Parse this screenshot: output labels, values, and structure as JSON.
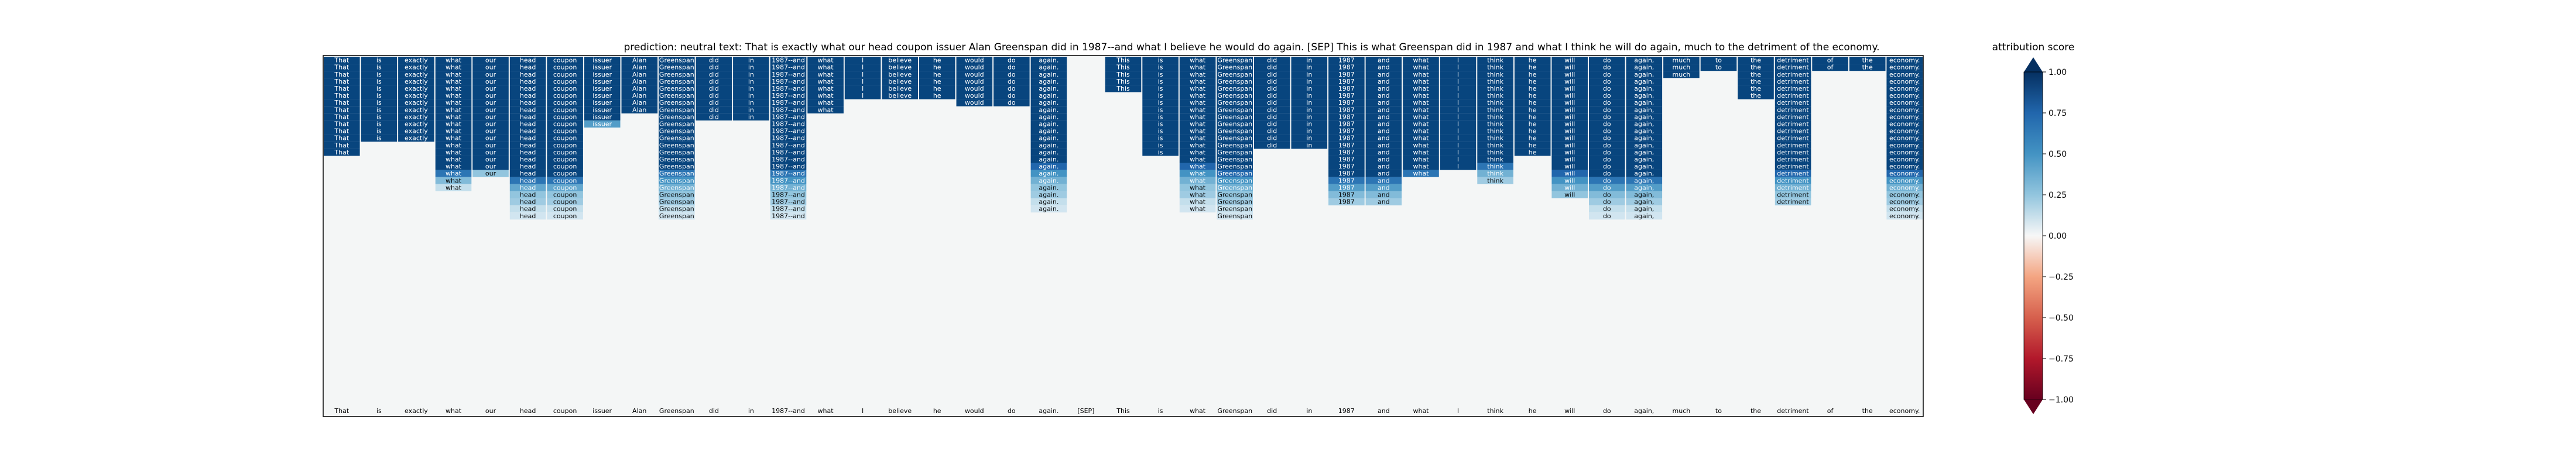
{
  "chart_data": [
    {
      "type": "heatmap",
      "title": "prediction:  neutral     text:  That is exactly what our head coupon issuer Alan Greenspan did in 1987--and what I believe he would do again. [SEP] This is what Greenspan did in 1987 and what I think he will do again, much to the detriment of the economy.",
      "tokens": [
        "That",
        "is",
        "exactly",
        "what",
        "our",
        "head",
        "coupon",
        "issuer",
        "Alan",
        "Greenspan",
        "did",
        "in",
        "1987--and",
        "what",
        "I",
        "believe",
        "he",
        "would",
        "do",
        "again.",
        "[SEP]",
        "This",
        "is",
        "what",
        "Greenspan",
        "did",
        "in",
        "1987",
        "and",
        "what",
        "I",
        "think",
        "he",
        "will",
        "do",
        "again,",
        "much",
        "to",
        "the",
        "detriment",
        "of",
        "the",
        "economy."
      ],
      "rows_shown": 23,
      "column_rows": [
        [
          1,
          1,
          1,
          1,
          1,
          1,
          1,
          1,
          1,
          1,
          1,
          1,
          1,
          1,
          0,
          0,
          0,
          0,
          0,
          0,
          0,
          0,
          0
        ],
        [
          1,
          1,
          1,
          1,
          1,
          1,
          1,
          1,
          1,
          1,
          1,
          1,
          0,
          0,
          0,
          0,
          0,
          0,
          0,
          0,
          0,
          0,
          0
        ],
        [
          1,
          1,
          1,
          1,
          1,
          1,
          1,
          1,
          1,
          1,
          1,
          1,
          0,
          0,
          0,
          0,
          0,
          0,
          0,
          0,
          0,
          0,
          0
        ],
        [
          1,
          1,
          1,
          1,
          1,
          1,
          1,
          1,
          1,
          1,
          1,
          1,
          1,
          1,
          1,
          1,
          0.85,
          0.55,
          0.3,
          0,
          0,
          0,
          0
        ],
        [
          1,
          1,
          1,
          1,
          1,
          1,
          1,
          1,
          1,
          1,
          1,
          1,
          1,
          1,
          1,
          1,
          0.5,
          0,
          0,
          0,
          0,
          0,
          0
        ],
        [
          1,
          1,
          1,
          1,
          1,
          1,
          1,
          1,
          1,
          1,
          1,
          1,
          1,
          1,
          1,
          1,
          1,
          0.85,
          0.65,
          0.5,
          0.45,
          0.3,
          0.25
        ],
        [
          1,
          1,
          1,
          1,
          1,
          1,
          1,
          1,
          1,
          1,
          1,
          1,
          1,
          1,
          1,
          1,
          1,
          0.85,
          0.65,
          0.5,
          0.45,
          0.3,
          0.25
        ],
        [
          1,
          1,
          1,
          1,
          1,
          1,
          1,
          1,
          1,
          0.7,
          0,
          0,
          0,
          0,
          0,
          0,
          0,
          0,
          0,
          0,
          0,
          0,
          0
        ],
        [
          1,
          1,
          1,
          1,
          1,
          1,
          1,
          1,
          0,
          0,
          0,
          0,
          0,
          0,
          0,
          0,
          0,
          0,
          0,
          0,
          0,
          0,
          0
        ],
        [
          1,
          1,
          1,
          1,
          1,
          1,
          1,
          1,
          1,
          1,
          1,
          1,
          1,
          1,
          1,
          1,
          0.85,
          0.75,
          0.6,
          0.5,
          0.45,
          0.3,
          0.25
        ],
        [
          1,
          1,
          1,
          1,
          1,
          1,
          1,
          1,
          1,
          0,
          0,
          0,
          0,
          0,
          0,
          0,
          0,
          0,
          0,
          0,
          0,
          0,
          0
        ],
        [
          1,
          1,
          1,
          1,
          1,
          1,
          1,
          1,
          1,
          0,
          0,
          0,
          0,
          0,
          0,
          0,
          0,
          0,
          0,
          0,
          0,
          0,
          0
        ],
        [
          1,
          1,
          1,
          1,
          1,
          1,
          1,
          1,
          1,
          1,
          1,
          1,
          1,
          1,
          1,
          1,
          0.85,
          0.75,
          0.6,
          0.5,
          0.45,
          0.3,
          0.25
        ],
        [
          1,
          1,
          1,
          1,
          1,
          1,
          1,
          1,
          0,
          0,
          0,
          0,
          0,
          0,
          0,
          0,
          0,
          0,
          0,
          0,
          0,
          0,
          0
        ],
        [
          1,
          1,
          1,
          1,
          1,
          1,
          0,
          0,
          0,
          0,
          0,
          0,
          0,
          0,
          0,
          0,
          0,
          0,
          0,
          0,
          0,
          0,
          0
        ],
        [
          1,
          1,
          1,
          1,
          1,
          1,
          0,
          0,
          0,
          0,
          0,
          0,
          0,
          0,
          0,
          0,
          0,
          0,
          0,
          0,
          0,
          0,
          0
        ],
        [
          1,
          1,
          1,
          1,
          1,
          1,
          0,
          0,
          0,
          0,
          0,
          0,
          0,
          0,
          0,
          0,
          0,
          0,
          0,
          0,
          0,
          0,
          0
        ],
        [
          1,
          1,
          1,
          1,
          1,
          1,
          1,
          0,
          0,
          0,
          0,
          0,
          0,
          0,
          0,
          0,
          0,
          0,
          0,
          0,
          0,
          0,
          0
        ],
        [
          1,
          1,
          1,
          1,
          1,
          1,
          1,
          0,
          0,
          0,
          0,
          0,
          0,
          0,
          0,
          0,
          0,
          0,
          0,
          0,
          0,
          0,
          0
        ],
        [
          1,
          1,
          1,
          1,
          1,
          1,
          1,
          1,
          1,
          1,
          1,
          1,
          1,
          1,
          1,
          0.9,
          0.75,
          0.6,
          0.5,
          0.45,
          0.3,
          0.25,
          0
        ],
        [
          0,
          0,
          0,
          0,
          0,
          0,
          0,
          0,
          0,
          0,
          0,
          0,
          0,
          0,
          0,
          0,
          0,
          0,
          0,
          0,
          0,
          0,
          0
        ],
        [
          1,
          1,
          1,
          1,
          1,
          0,
          0,
          0,
          0,
          0,
          0,
          0,
          0,
          0,
          0,
          0,
          0,
          0,
          0,
          0,
          0,
          0,
          0
        ],
        [
          1,
          1,
          1,
          1,
          1,
          1,
          1,
          1,
          1,
          1,
          1,
          1,
          1,
          1,
          0,
          0,
          0,
          0,
          0,
          0,
          0,
          0,
          0
        ],
        [
          1,
          1,
          1,
          1,
          1,
          1,
          1,
          1,
          1,
          1,
          1,
          1,
          1,
          1,
          1,
          0.9,
          0.75,
          0.6,
          0.5,
          0.45,
          0.3,
          0.25,
          0
        ],
        [
          1,
          1,
          1,
          1,
          1,
          1,
          1,
          1,
          1,
          1,
          1,
          1,
          1,
          1,
          1,
          1,
          0.9,
          0.75,
          0.6,
          0.5,
          0.45,
          0.3,
          0.25
        ],
        [
          1,
          1,
          1,
          1,
          1,
          1,
          1,
          1,
          1,
          1,
          1,
          1,
          1,
          0,
          0,
          0,
          0,
          0,
          0,
          0,
          0,
          0,
          0
        ],
        [
          1,
          1,
          1,
          1,
          1,
          1,
          1,
          1,
          1,
          1,
          1,
          1,
          1,
          0,
          0,
          0,
          0,
          0,
          0,
          0,
          0,
          0,
          0
        ],
        [
          1,
          1,
          1,
          1,
          1,
          1,
          1,
          1,
          1,
          1,
          1,
          1,
          1,
          1,
          1,
          1,
          1,
          0.85,
          0.7,
          0.55,
          0.45,
          0,
          0
        ],
        [
          1,
          1,
          1,
          1,
          1,
          1,
          1,
          1,
          1,
          1,
          1,
          1,
          1,
          1,
          1,
          1,
          1,
          0.85,
          0.7,
          0.55,
          0.45,
          0,
          0
        ],
        [
          1,
          1,
          1,
          1,
          1,
          1,
          1,
          1,
          1,
          1,
          1,
          1,
          1,
          1,
          1,
          1,
          0.85,
          0,
          0,
          0,
          0,
          0,
          0
        ],
        [
          1,
          1,
          1,
          1,
          1,
          1,
          1,
          1,
          1,
          1,
          1,
          1,
          1,
          1,
          1,
          1,
          0,
          0,
          0,
          0,
          0,
          0,
          0
        ],
        [
          1,
          1,
          1,
          1,
          1,
          1,
          1,
          1,
          1,
          1,
          1,
          1,
          1,
          1,
          1,
          0.85,
          0.6,
          0.45,
          0,
          0,
          0,
          0,
          0
        ],
        [
          1,
          1,
          1,
          1,
          1,
          1,
          1,
          1,
          1,
          1,
          1,
          1,
          1,
          1,
          0,
          0,
          0,
          0,
          0,
          0,
          0,
          0,
          0
        ],
        [
          1,
          1,
          1,
          1,
          1,
          1,
          1,
          1,
          1,
          1,
          1,
          1,
          1,
          1,
          1,
          1,
          0.9,
          0.75,
          0.6,
          0.5,
          0,
          0,
          0
        ],
        [
          1,
          1,
          1,
          1,
          1,
          1,
          1,
          1,
          1,
          1,
          1,
          1,
          1,
          1,
          1,
          1,
          1,
          0.85,
          0.7,
          0.55,
          0.45,
          0.3,
          0.25
        ],
        [
          1,
          1,
          1,
          1,
          1,
          1,
          1,
          1,
          1,
          1,
          1,
          1,
          1,
          1,
          1,
          1,
          1,
          0.85,
          0.7,
          0.55,
          0.45,
          0.3,
          0.25
        ],
        [
          1,
          1,
          1,
          0,
          0,
          0,
          0,
          0,
          0,
          0,
          0,
          0,
          0,
          0,
          0,
          0,
          0,
          0,
          0,
          0,
          0,
          0,
          0
        ],
        [
          1,
          1,
          0,
          0,
          0,
          0,
          0,
          0,
          0,
          0,
          0,
          0,
          0,
          0,
          0,
          0,
          0,
          0,
          0,
          0,
          0,
          0,
          0
        ],
        [
          1,
          1,
          1,
          1,
          1,
          1,
          0,
          0,
          0,
          0,
          0,
          0,
          0,
          0,
          0,
          0,
          0,
          0,
          0,
          0,
          0,
          0,
          0
        ],
        [
          1,
          1,
          1,
          1,
          1,
          1,
          1,
          1,
          1,
          1,
          1,
          1,
          1,
          1,
          1,
          1,
          0.9,
          0.75,
          0.6,
          0.5,
          0.45,
          0,
          0
        ],
        [
          1,
          1,
          0,
          0,
          0,
          0,
          0,
          0,
          0,
          0,
          0,
          0,
          0,
          0,
          0,
          0,
          0,
          0,
          0,
          0,
          0,
          0,
          0
        ],
        [
          1,
          1,
          0,
          0,
          0,
          0,
          0,
          0,
          0,
          0,
          0,
          0,
          0,
          0,
          0,
          0,
          0,
          0,
          0,
          0,
          0,
          0,
          0
        ],
        [
          1,
          1,
          1,
          1,
          1,
          1,
          1,
          1,
          1,
          1,
          1,
          1,
          1,
          1,
          1,
          1,
          0.9,
          0.75,
          0.6,
          0.5,
          0.45,
          0.3,
          0.25
        ]
      ],
      "colorbar": {
        "label": "attribution score",
        "range": [
          -1.0,
          1.0
        ],
        "ticks": [
          "1.00",
          "0.75",
          "0.50",
          "0.25",
          "0.00",
          "−0.25",
          "−0.50",
          "−0.75",
          "−1.00"
        ],
        "tick_values": [
          1.0,
          0.75,
          0.5,
          0.25,
          0.0,
          -0.25,
          -0.5,
          -0.75,
          -1.0
        ],
        "colormap": "RdBu"
      }
    }
  ],
  "colors": {
    "neutral_cell": "#f4f6f6",
    "strong_positive": "#0d4f8b",
    "light_positive": "#c6dbef",
    "strong_negative": "#67001f"
  }
}
